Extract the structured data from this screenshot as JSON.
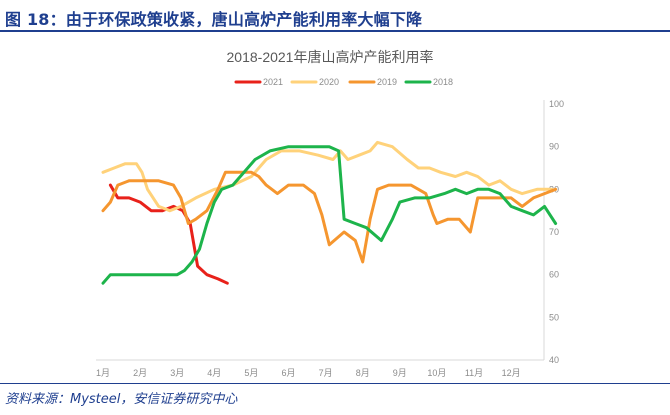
{
  "header": {
    "title": "图 18：由于环保政策收紧，唐山高炉产能利用率大幅下降"
  },
  "footer": {
    "source": "资料来源：Mysteel，安信证券研究中心"
  },
  "chart_data": {
    "type": "line",
    "title": "2018-2021年唐山高炉产能利用率",
    "xlabel": "",
    "ylabel": "",
    "x_ticks": [
      "1月",
      "2月",
      "3月",
      "4月",
      "5月",
      "6月",
      "7月",
      "8月",
      "9月",
      "10月",
      "11月",
      "12月"
    ],
    "y_ticks": [
      40,
      50,
      60,
      70,
      80,
      90,
      100
    ],
    "xlim": [
      1,
      13.2
    ],
    "ylim": [
      40,
      100
    ],
    "y_axis_position": "right",
    "grid": false,
    "legend_position": "top",
    "series": [
      {
        "name": "2021",
        "color": "#e8211a",
        "points": [
          [
            1.2,
            81
          ],
          [
            1.4,
            78
          ],
          [
            1.7,
            78
          ],
          [
            2.0,
            77
          ],
          [
            2.3,
            75
          ],
          [
            2.6,
            75
          ],
          [
            2.9,
            76
          ],
          [
            3.15,
            75
          ],
          [
            3.35,
            72
          ],
          [
            3.55,
            62
          ],
          [
            3.8,
            60
          ],
          [
            4.1,
            59
          ],
          [
            4.35,
            58
          ]
        ]
      },
      {
        "name": "2020",
        "color": "#ffd27a",
        "points": [
          [
            1.0,
            84
          ],
          [
            1.3,
            85
          ],
          [
            1.6,
            86
          ],
          [
            1.9,
            86
          ],
          [
            2.05,
            84
          ],
          [
            2.2,
            80
          ],
          [
            2.5,
            76
          ],
          [
            2.8,
            75
          ],
          [
            3.1,
            76
          ],
          [
            3.5,
            78
          ],
          [
            4.0,
            80
          ],
          [
            4.5,
            81
          ],
          [
            5.0,
            83
          ],
          [
            5.4,
            87
          ],
          [
            5.8,
            89
          ],
          [
            6.3,
            89
          ],
          [
            6.8,
            88
          ],
          [
            7.2,
            87
          ],
          [
            7.4,
            89
          ],
          [
            7.6,
            87
          ],
          [
            7.9,
            88
          ],
          [
            8.2,
            89
          ],
          [
            8.4,
            91
          ],
          [
            8.8,
            90
          ],
          [
            9.2,
            87
          ],
          [
            9.5,
            85
          ],
          [
            9.8,
            85
          ],
          [
            10.1,
            84
          ],
          [
            10.5,
            83
          ],
          [
            10.8,
            84
          ],
          [
            11.1,
            83
          ],
          [
            11.4,
            81
          ],
          [
            11.7,
            82
          ],
          [
            12.0,
            80
          ],
          [
            12.3,
            79
          ],
          [
            12.7,
            80
          ],
          [
            13.1,
            80
          ]
        ]
      },
      {
        "name": "2019",
        "color": "#f5962f",
        "points": [
          [
            1.0,
            75
          ],
          [
            1.2,
            77
          ],
          [
            1.4,
            81
          ],
          [
            1.7,
            82
          ],
          [
            2.1,
            82
          ],
          [
            2.5,
            82
          ],
          [
            2.9,
            81
          ],
          [
            3.1,
            78
          ],
          [
            3.3,
            72
          ],
          [
            3.5,
            73
          ],
          [
            3.8,
            75
          ],
          [
            4.1,
            80
          ],
          [
            4.3,
            84
          ],
          [
            4.7,
            84
          ],
          [
            5.0,
            84
          ],
          [
            5.2,
            83
          ],
          [
            5.4,
            81
          ],
          [
            5.7,
            79
          ],
          [
            6.0,
            81
          ],
          [
            6.4,
            81
          ],
          [
            6.7,
            79
          ],
          [
            6.9,
            74
          ],
          [
            7.1,
            67
          ],
          [
            7.5,
            70
          ],
          [
            7.8,
            68
          ],
          [
            8.0,
            63
          ],
          [
            8.2,
            73
          ],
          [
            8.4,
            80
          ],
          [
            8.7,
            81
          ],
          [
            9.0,
            81
          ],
          [
            9.3,
            81
          ],
          [
            9.5,
            80
          ],
          [
            9.7,
            79
          ],
          [
            9.9,
            74
          ],
          [
            10.0,
            72
          ],
          [
            10.3,
            73
          ],
          [
            10.6,
            73
          ],
          [
            10.9,
            70
          ],
          [
            11.1,
            78
          ],
          [
            11.4,
            78
          ],
          [
            11.7,
            78
          ],
          [
            12.0,
            78
          ],
          [
            12.3,
            76
          ],
          [
            12.6,
            78
          ],
          [
            12.9,
            79
          ],
          [
            13.2,
            80
          ]
        ]
      },
      {
        "name": "2018",
        "color": "#1db44b",
        "points": [
          [
            1.0,
            58
          ],
          [
            1.2,
            60
          ],
          [
            1.5,
            60
          ],
          [
            2.0,
            60
          ],
          [
            2.5,
            60
          ],
          [
            3.0,
            60
          ],
          [
            3.2,
            61
          ],
          [
            3.4,
            63
          ],
          [
            3.6,
            66
          ],
          [
            3.8,
            72
          ],
          [
            4.0,
            77
          ],
          [
            4.2,
            80
          ],
          [
            4.5,
            81
          ],
          [
            4.8,
            84
          ],
          [
            5.1,
            87
          ],
          [
            5.5,
            89
          ],
          [
            6.0,
            90
          ],
          [
            6.4,
            90
          ],
          [
            6.8,
            90
          ],
          [
            7.1,
            90
          ],
          [
            7.35,
            89
          ],
          [
            7.5,
            73
          ],
          [
            7.8,
            72
          ],
          [
            8.1,
            71
          ],
          [
            8.5,
            68
          ],
          [
            8.8,
            73
          ],
          [
            9.0,
            77
          ],
          [
            9.4,
            78
          ],
          [
            9.8,
            78
          ],
          [
            10.2,
            79
          ],
          [
            10.5,
            80
          ],
          [
            10.8,
            79
          ],
          [
            11.1,
            80
          ],
          [
            11.4,
            80
          ],
          [
            11.7,
            79
          ],
          [
            12.0,
            76
          ],
          [
            12.3,
            75
          ],
          [
            12.6,
            74
          ],
          [
            12.9,
            76
          ],
          [
            13.2,
            72
          ]
        ]
      }
    ]
  }
}
